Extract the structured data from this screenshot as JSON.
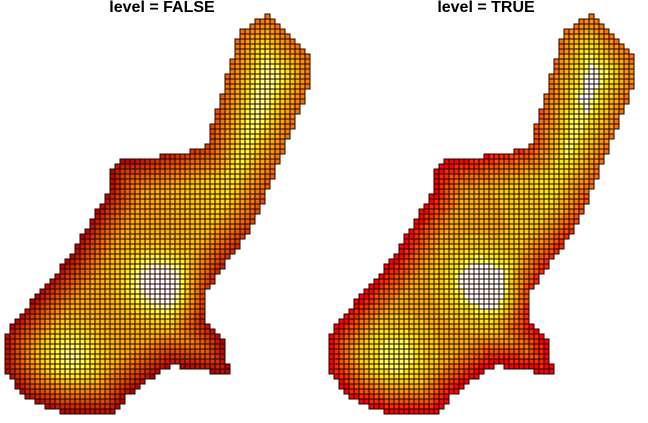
{
  "chart_data": [
    {
      "type": "heatmap",
      "title": "level = FALSE",
      "level": false,
      "cells": "individual grid cells, each colored by its value",
      "palette": [
        "#b30000",
        "#d93a00",
        "#f06a00",
        "#ff9a00",
        "#ffcf00",
        "#ffff40",
        "#ffffff"
      ],
      "value_range": [
        0,
        1
      ],
      "grid": true,
      "legend": "none"
    },
    {
      "type": "heatmap",
      "title": "level = TRUE",
      "level": true,
      "cells": "grid cells grouped into contour level bands",
      "levels": 10,
      "palette": [
        "#ff0000",
        "#ff2a00",
        "#ff5200",
        "#ff7400",
        "#ff9500",
        "#ffb300",
        "#ffcf00",
        "#ffe900",
        "#ffff55",
        "#ffffff"
      ],
      "value_range": [
        0,
        1
      ],
      "grid": true,
      "legend": "none"
    }
  ]
}
